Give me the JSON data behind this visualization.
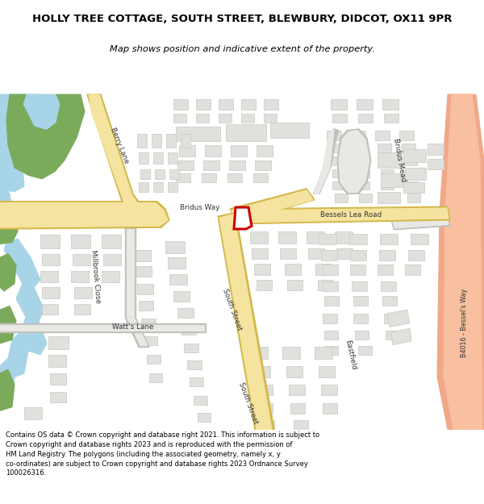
{
  "title": "HOLLY TREE COTTAGE, SOUTH STREET, BLEWBURY, DIDCOT, OX11 9PR",
  "subtitle": "Map shows position and indicative extent of the property.",
  "footer": "Contains OS data © Crown copyright and database right 2021. This information is subject to Crown copyright and database rights 2023 and is reproduced with the permission of HM Land Registry. The polygons (including the associated geometry, namely x, y co-ordinates) are subject to Crown copyright and database rights 2023 Ordnance Survey 100026316.",
  "map_bg": "#f5f5f0",
  "road_yellow": "#f5e4a0",
  "road_yellow_border": "#d4b84a",
  "water_color": "#a8d4e8",
  "green_dark": "#7aaa5a",
  "building_color": "#e0e0dc",
  "building_border": "#c8c8c4",
  "property_red": "#cc0000",
  "salmon": "#f0a888",
  "dark_green_strip": "#5a8040",
  "road_gray": "#e8e8e4",
  "road_gray_border": "#c0c0bc"
}
